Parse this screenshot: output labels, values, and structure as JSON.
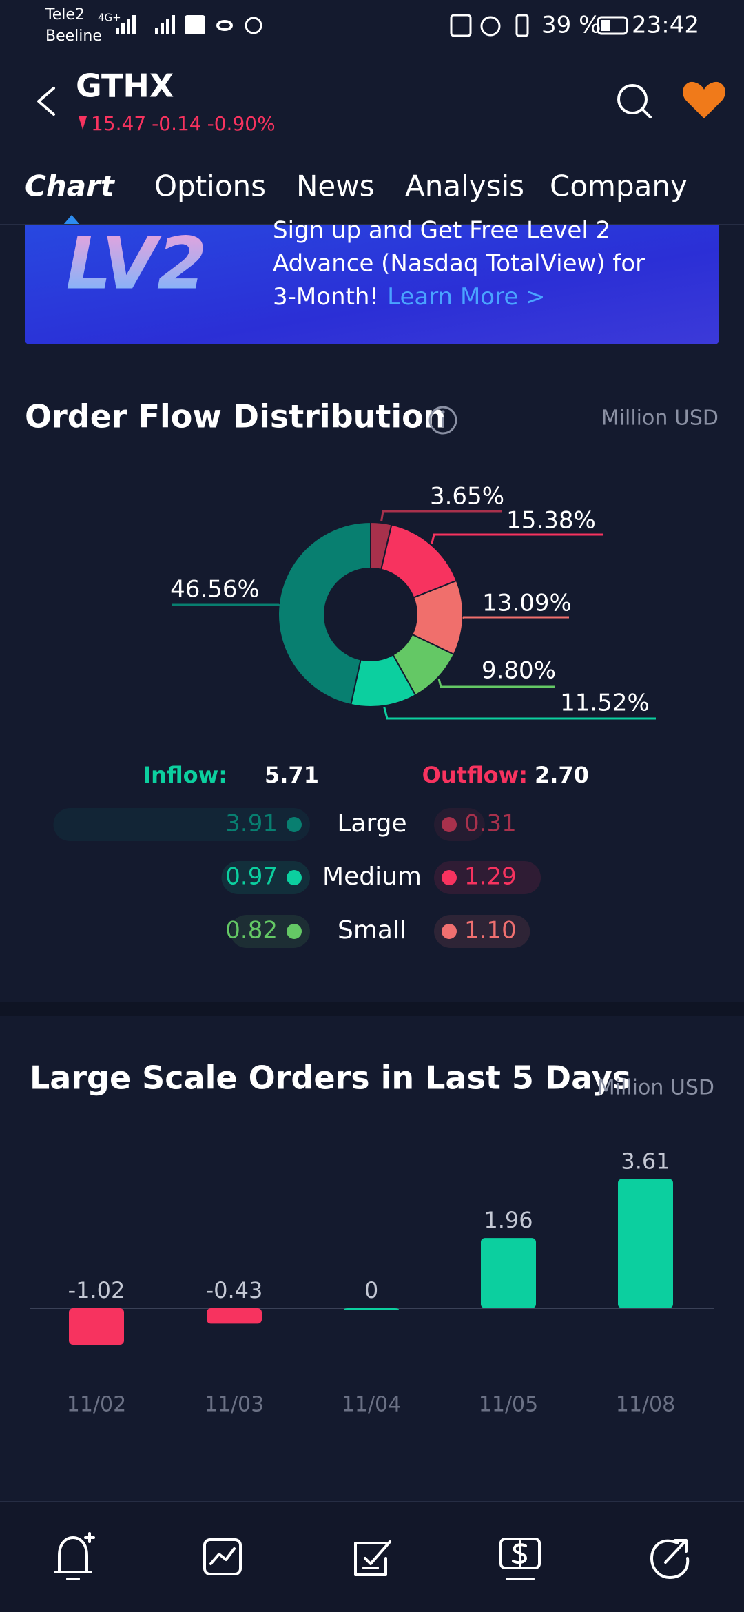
{
  "status_bar": {
    "carrier_1": "Tele2",
    "carrier_2": "Beeline",
    "network": "4G+",
    "battery": "39 %",
    "time": "23:42"
  },
  "header": {
    "symbol": "GTHX",
    "price": "15.47",
    "change": "-0.14",
    "change_pct": "-0.90%"
  },
  "tabs": [
    "Chart",
    "Options",
    "News",
    "Analysis",
    "Company"
  ],
  "banner": {
    "badge": "LV2",
    "lines": [
      "Sign up and Get Free Level 2",
      "Advance (Nasdaq TotalView) for",
      "3-Month!"
    ],
    "link": "Learn More >"
  },
  "order_flow": {
    "title": "Order Flow Distribution",
    "unit": "Million USD",
    "chart": {
      "type": "pie",
      "values": [
        3.65,
        15.38,
        13.09,
        9.8,
        11.52,
        46.56
      ],
      "value_labels": [
        "3.65%",
        "15.38%",
        "13.09%",
        "9.80%",
        "11.52%",
        "46.56%"
      ],
      "colors": [
        "#a8314c",
        "#f7335f",
        "#f06f6c",
        "#64c865",
        "#0ccf9f",
        "#087f70"
      ]
    },
    "inflow_label": "Inflow:",
    "inflow_total": "5.71",
    "outflow_label": "Outflow:",
    "outflow_total": "2.70",
    "rows": {
      "names": [
        "Large",
        "Medium",
        "Small"
      ],
      "inflow": {
        "values": [
          3.91,
          0.97,
          0.82
        ],
        "colors": [
          "#087f70",
          "#0ccf9f",
          "#64c865"
        ]
      },
      "outflow": {
        "values": [
          0.31,
          1.29,
          1.1
        ],
        "value_labels": [
          "0.31",
          "1.29",
          "1.10"
        ],
        "colors": [
          "#a8314c",
          "#f7335f",
          "#f07070"
        ]
      }
    }
  },
  "large_orders": {
    "title": "Large Scale Orders in Last 5 Days",
    "unit": "Million USD",
    "chart": {
      "type": "bar",
      "categories": [
        "11/02",
        "11/03",
        "11/04",
        "11/05",
        "11/08"
      ],
      "values": [
        -1.02,
        -0.43,
        0,
        1.96,
        3.61
      ],
      "positive_color": "#0ccf9f",
      "negative_color": "#f7335f"
    }
  }
}
